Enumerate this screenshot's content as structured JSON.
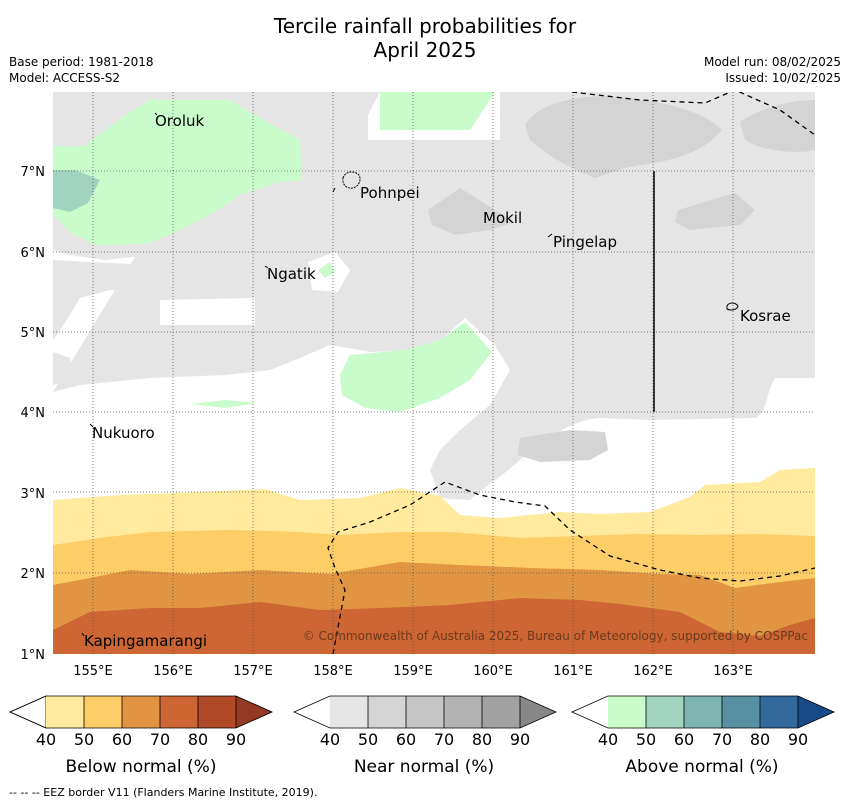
{
  "header": {
    "title_line1": "Tercile rainfall probabilities for",
    "title_line2": "April 2025",
    "base_period": "Base period: 1981-2018",
    "model": "Model: ACCESS-S2",
    "model_run": "Model run: 08/02/2025",
    "issued": "Issued: 10/02/2025"
  },
  "map": {
    "lon_range": [
      154.5,
      164.0
    ],
    "lat_range": [
      1.0,
      8.0
    ],
    "lon_ticks": [
      "155°E",
      "156°E",
      "157°E",
      "158°E",
      "159°E",
      "160°E",
      "161°E",
      "162°E",
      "163°E"
    ],
    "lat_ticks": [
      "1°N",
      "2°N",
      "3°N",
      "4°N",
      "5°N",
      "6°N",
      "7°N"
    ],
    "places": [
      {
        "name": "Oroluk",
        "lon": 155.75,
        "lat": 7.6
      },
      {
        "name": "Pohnpei",
        "lon": 158.3,
        "lat": 6.9
      },
      {
        "name": "Mokil",
        "lon": 159.85,
        "lat": 6.65
      },
      {
        "name": "Pingelap",
        "lon": 160.7,
        "lat": 6.2
      },
      {
        "name": "Ngatik",
        "lon": 157.15,
        "lat": 5.8
      },
      {
        "name": "Kosrae",
        "lon": 163.0,
        "lat": 5.3
      },
      {
        "name": "Nukuoro",
        "lon": 154.95,
        "lat": 3.85
      },
      {
        "name": "Kapingamarangi",
        "lon": 154.85,
        "lat": 1.25
      }
    ],
    "copyright": "© Commonwealth of Australia 2025, Bureau of Meteorology, supported by COSPPac",
    "colors": {
      "near_normal_40": "#e5e5e5",
      "near_normal_50": "#d4d4d4",
      "above_normal_40": "#c9fcca",
      "above_normal_50": "#a0d4c0",
      "below_normal_40": "#ffea9e",
      "below_normal_50": "#fdcd68",
      "below_normal_60": "#e19442",
      "below_normal_70": "#cd6633"
    }
  },
  "colorbars": [
    {
      "label": "Below normal (%)",
      "ticks": [
        "40",
        "50",
        "60",
        "70",
        "80",
        "90"
      ],
      "colors": [
        "#ffea9e",
        "#fdcd68",
        "#e19442",
        "#cd6633",
        "#b04a28"
      ],
      "tip": "#943a22"
    },
    {
      "label": "Near normal (%)",
      "ticks": [
        "40",
        "50",
        "60",
        "70",
        "80",
        "90"
      ],
      "colors": [
        "#e5e5e5",
        "#d4d4d4",
        "#c6c6c6",
        "#b3b3b3",
        "#a2a2a2"
      ],
      "tip": "#878787"
    },
    {
      "label": "Above normal (%)",
      "ticks": [
        "40",
        "50",
        "60",
        "70",
        "80",
        "90"
      ],
      "colors": [
        "#c9fcca",
        "#a0d4c0",
        "#7fb5b1",
        "#5a90a3",
        "#316a9a"
      ],
      "tip": "#174a86"
    }
  ],
  "footer": "--  --  -- EEZ border V11 (Flanders Marine Institute, 2019)."
}
